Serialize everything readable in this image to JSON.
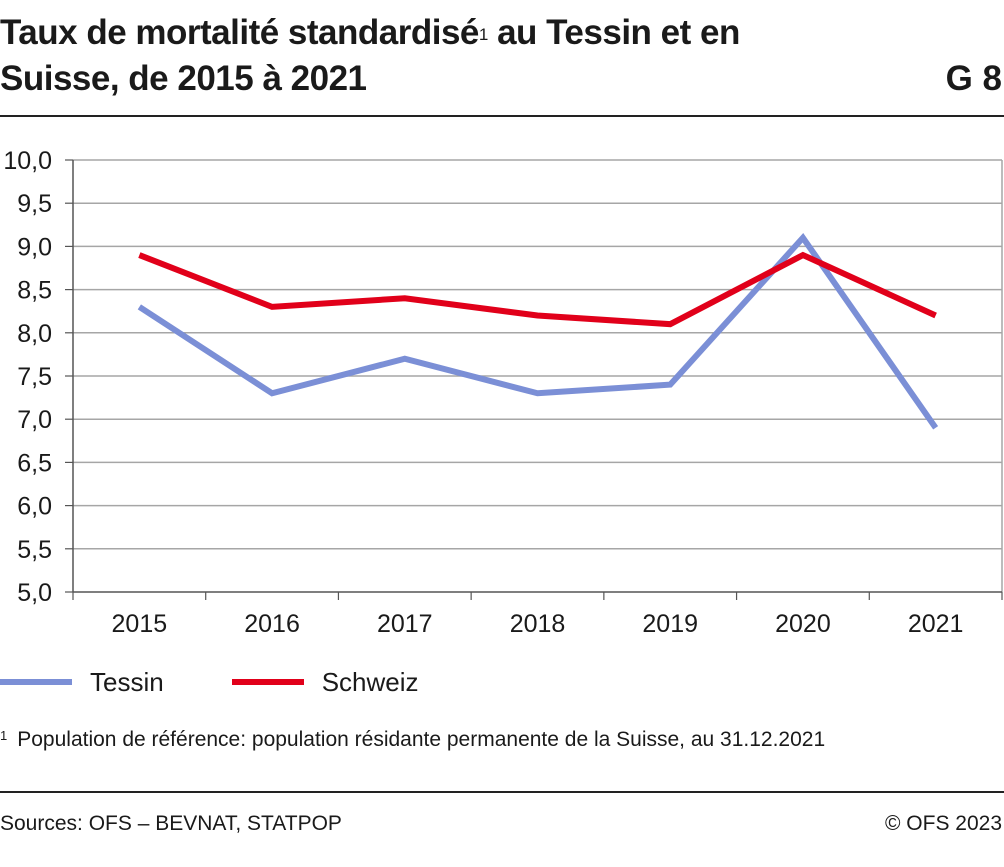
{
  "header": {
    "title_part1": "Taux de mortalité standardisé",
    "title_sup": "1",
    "title_part2": " au Tessin et en Suisse, de 2015 à 2021",
    "code": "G 8"
  },
  "footnote": {
    "marker": "1",
    "text": "Population de référence: population résidante permanente de la Suisse, au 31.12.2021"
  },
  "source": "Sources: OFS – BEVNAT, STATPOP",
  "copyright": "© OFS 2023",
  "chart_data": {
    "type": "line",
    "title": "Taux de mortalité standardisé¹ au Tessin et en Suisse, de 2015 à 2021",
    "xlabel": "",
    "ylabel": "",
    "x": [
      "2015",
      "2016",
      "2017",
      "2018",
      "2019",
      "2020",
      "2021"
    ],
    "ylim": [
      5.0,
      10.0
    ],
    "yticks": [
      "5,0",
      "5,5",
      "6,0",
      "6,5",
      "7,0",
      "7,5",
      "8,0",
      "8,5",
      "9,0",
      "9,5",
      "10,0"
    ],
    "grid": true,
    "legend_position": "bottom-left",
    "series": [
      {
        "name": "Tessin",
        "color": "#7b8fd6",
        "values": [
          8.3,
          7.3,
          7.7,
          7.3,
          7.4,
          9.1,
          6.9
        ]
      },
      {
        "name": "Schweiz",
        "color": "#e1001a",
        "values": [
          8.9,
          8.3,
          8.4,
          8.2,
          8.1,
          8.9,
          8.2
        ]
      }
    ]
  }
}
